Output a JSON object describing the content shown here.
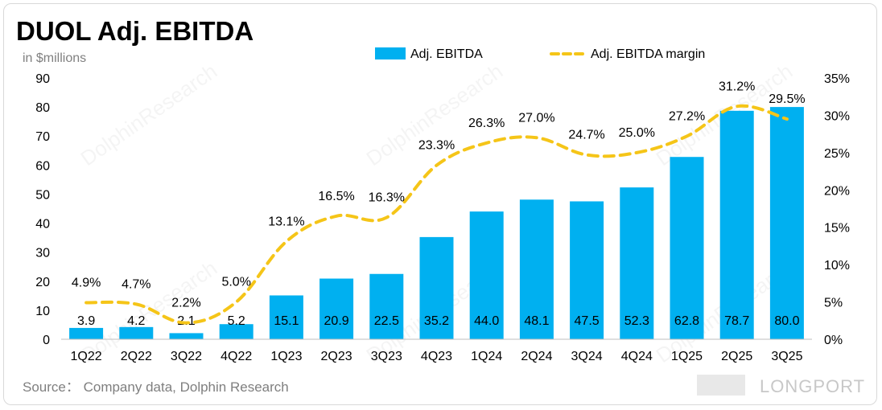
{
  "chart_data": {
    "type": "bar",
    "title": "DUOL Adj. EBITDA",
    "subtitle": "in $millions",
    "categories": [
      "1Q22",
      "2Q22",
      "3Q22",
      "4Q22",
      "1Q23",
      "2Q23",
      "3Q23",
      "4Q23",
      "1Q24",
      "2Q24",
      "3Q24",
      "4Q24",
      "1Q25",
      "2Q25",
      "3Q25"
    ],
    "series": [
      {
        "name": "Adj. EBITDA",
        "type": "bar",
        "axis": "left",
        "color": "#00b0f0",
        "values": [
          3.9,
          4.2,
          2.1,
          5.2,
          15.1,
          20.9,
          22.5,
          35.2,
          44.0,
          48.1,
          47.5,
          52.3,
          62.8,
          78.7,
          80.0
        ],
        "labels": [
          "3.9",
          "4.2",
          "2.1",
          "5.2",
          "15.1",
          "20.9",
          "22.5",
          "35.2",
          "44.0",
          "48.1",
          "47.5",
          "52.3",
          "62.8",
          "78.7",
          "80.0"
        ]
      },
      {
        "name": "Adj. EBITDA margin",
        "type": "line",
        "axis": "right",
        "style": "dashed",
        "color": "#f5c518",
        "values": [
          4.9,
          4.7,
          2.2,
          5.0,
          13.1,
          16.5,
          16.3,
          23.3,
          26.3,
          27.0,
          24.7,
          25.0,
          27.2,
          31.2,
          29.5
        ],
        "labels": [
          "4.9%",
          "4.7%",
          "2.2%",
          "5.0%",
          "13.1%",
          "16.5%",
          "16.3%",
          "23.3%",
          "26.3%",
          "27.0%",
          "24.7%",
          "25.0%",
          "27.2%",
          "31.2%",
          "29.5%"
        ]
      }
    ],
    "y_left": {
      "min": 0,
      "max": 90,
      "ticks": [
        "0",
        "10",
        "20",
        "30",
        "40",
        "50",
        "60",
        "70",
        "80",
        "90"
      ]
    },
    "y_right": {
      "min": 0,
      "max": 35,
      "ticks": [
        "0%",
        "5%",
        "10%",
        "15%",
        "20%",
        "25%",
        "30%",
        "35%"
      ]
    },
    "legend": {
      "position": "top-right"
    },
    "grid": false
  },
  "source": "Source： Company data, Dolphin Research",
  "watermark": "DolphinResearch",
  "brand_mark": "LONGPORT"
}
